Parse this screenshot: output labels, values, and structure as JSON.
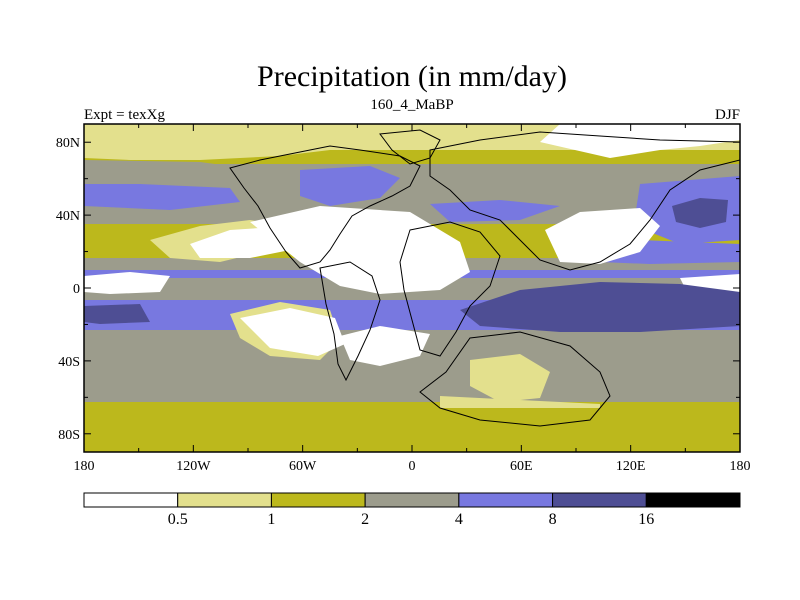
{
  "chart_data": {
    "type": "heatmap",
    "title": "Precipitation (in mm/day)",
    "left_string": "Expt = texXg",
    "center_string": "160_4_MaBP",
    "right_string": "DJF",
    "xaxis": {
      "range": [
        -180,
        180
      ],
      "ticks": [
        -180,
        -120,
        -60,
        0,
        60,
        120,
        180
      ],
      "tick_labels": [
        "180",
        "120W",
        "60W",
        "0",
        "60E",
        "120E",
        "180"
      ]
    },
    "yaxis": {
      "range": [
        -90,
        90
      ],
      "ticks": [
        80,
        40,
        0,
        -40,
        -80
      ],
      "tick_labels": [
        "80N",
        "40N",
        "0",
        "40S",
        "80S"
      ]
    },
    "colorbar": {
      "levels": [
        0.5,
        1,
        2,
        4,
        8,
        16
      ],
      "level_labels": [
        "0.5",
        "1",
        "2",
        "4",
        "8",
        "16"
      ],
      "colors": [
        "#ffffff",
        "#e3e08d",
        "#bcb81c",
        "#9c9c8c",
        "#7878e0",
        "#4e4e94",
        "#000000"
      ]
    },
    "colors": {
      "land_outline": "#000000"
    }
  }
}
